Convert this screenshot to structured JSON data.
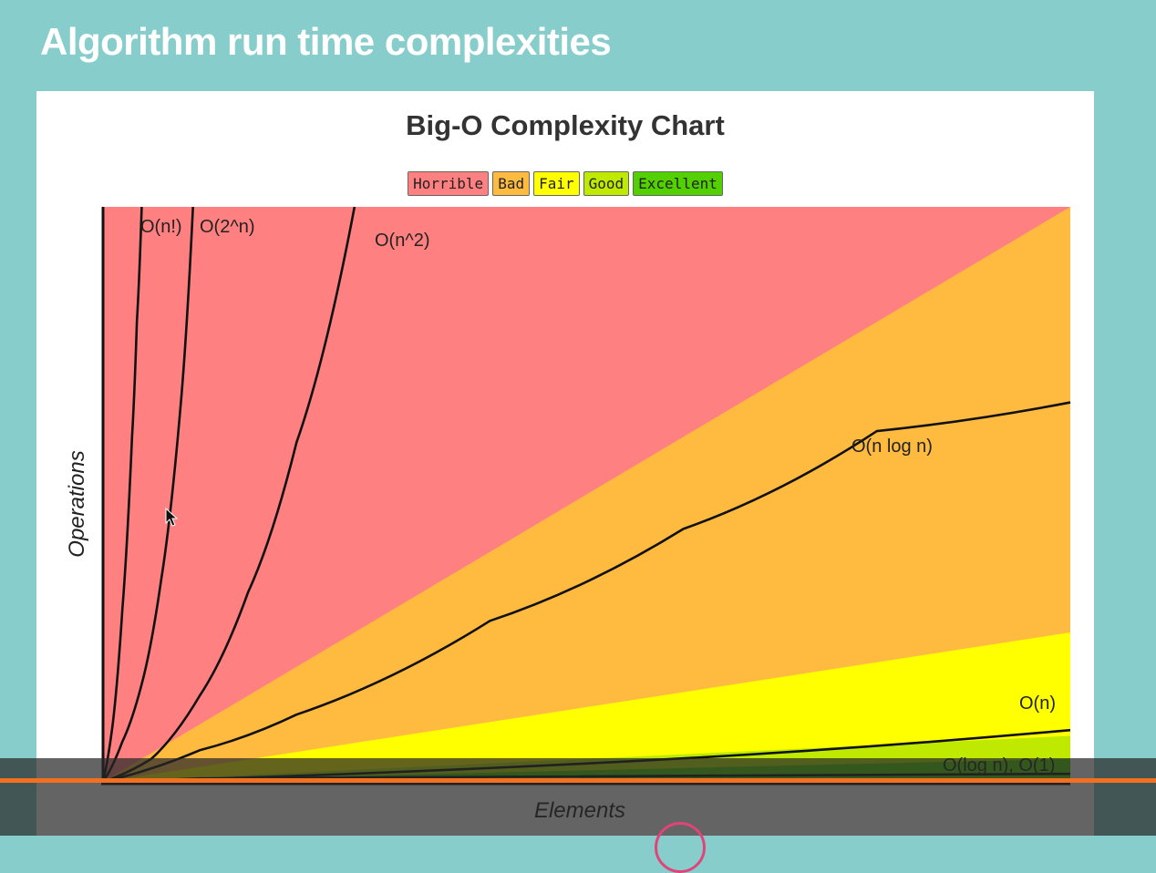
{
  "slide": {
    "title": "Algorithm run time complexities"
  },
  "chart_data": {
    "type": "line",
    "title": "Big-O Complexity Chart",
    "xlabel": "Elements",
    "ylabel": "Operations",
    "xlim": [
      0,
      100
    ],
    "ylim": [
      0,
      100
    ],
    "grid": false,
    "legend_position": "top-center",
    "legend": [
      {
        "label": "Horrible",
        "color": "#ff8080"
      },
      {
        "label": "Bad",
        "color": "#ffbb40"
      },
      {
        "label": "Fair",
        "color": "#ffff00"
      },
      {
        "label": "Good",
        "color": "#bfea00"
      },
      {
        "label": "Excellent",
        "color": "#53d000"
      }
    ],
    "zones": [
      {
        "name": "Horrible",
        "color": "#ff8080",
        "boundary_y_at_x_max": 100
      },
      {
        "name": "Bad",
        "color": "#ffbb40",
        "boundary_y_at_x_max": 100
      },
      {
        "name": "Fair",
        "color": "#ffff00",
        "boundary_y_at_x_max": 26
      },
      {
        "name": "Good",
        "color": "#bfea00",
        "boundary_y_at_x_max": 8
      },
      {
        "name": "Excellent",
        "color": "#53d000",
        "boundary_y_at_x_max": 4
      }
    ],
    "series": [
      {
        "name": "O(n!)",
        "x": [
          0,
          1,
          2,
          3,
          3.5,
          4
        ],
        "y": [
          0,
          10,
          30,
          60,
          80,
          100
        ]
      },
      {
        "name": "O(2^n)",
        "x": [
          0,
          2,
          4,
          6,
          8,
          9.3
        ],
        "y": [
          0,
          7,
          17,
          35,
          65,
          100
        ]
      },
      {
        "name": "O(n^2)",
        "x": [
          0,
          5,
          10,
          15,
          20,
          26
        ],
        "y": [
          0,
          4,
          15,
          33,
          59,
          100
        ]
      },
      {
        "name": "O(n log n)",
        "x": [
          0,
          10,
          20,
          40,
          60,
          80,
          100
        ],
        "y": [
          0,
          5.5,
          11.7,
          28,
          44,
          61,
          66
        ]
      },
      {
        "name": "O(n)",
        "x": [
          0,
          50,
          100
        ],
        "y": [
          0,
          3.2,
          9
        ]
      },
      {
        "name": "O(log n), O(1)",
        "x": [
          0,
          10,
          100
        ],
        "y": [
          0,
          0.6,
          1.4
        ]
      }
    ],
    "labels": [
      {
        "text": "O(n!)",
        "series": "O(n!)"
      },
      {
        "text": "O(2^n)",
        "series": "O(2^n)"
      },
      {
        "text": "O(n^2)",
        "series": "O(n^2)"
      },
      {
        "text": "O(n log n)",
        "series": "O(n log n)"
      },
      {
        "text": "O(n)",
        "series": "O(n)"
      },
      {
        "text": "O(log n), O(1)",
        "series": "O(log n), O(1)"
      }
    ]
  },
  "video": {
    "progress": 1.0
  }
}
